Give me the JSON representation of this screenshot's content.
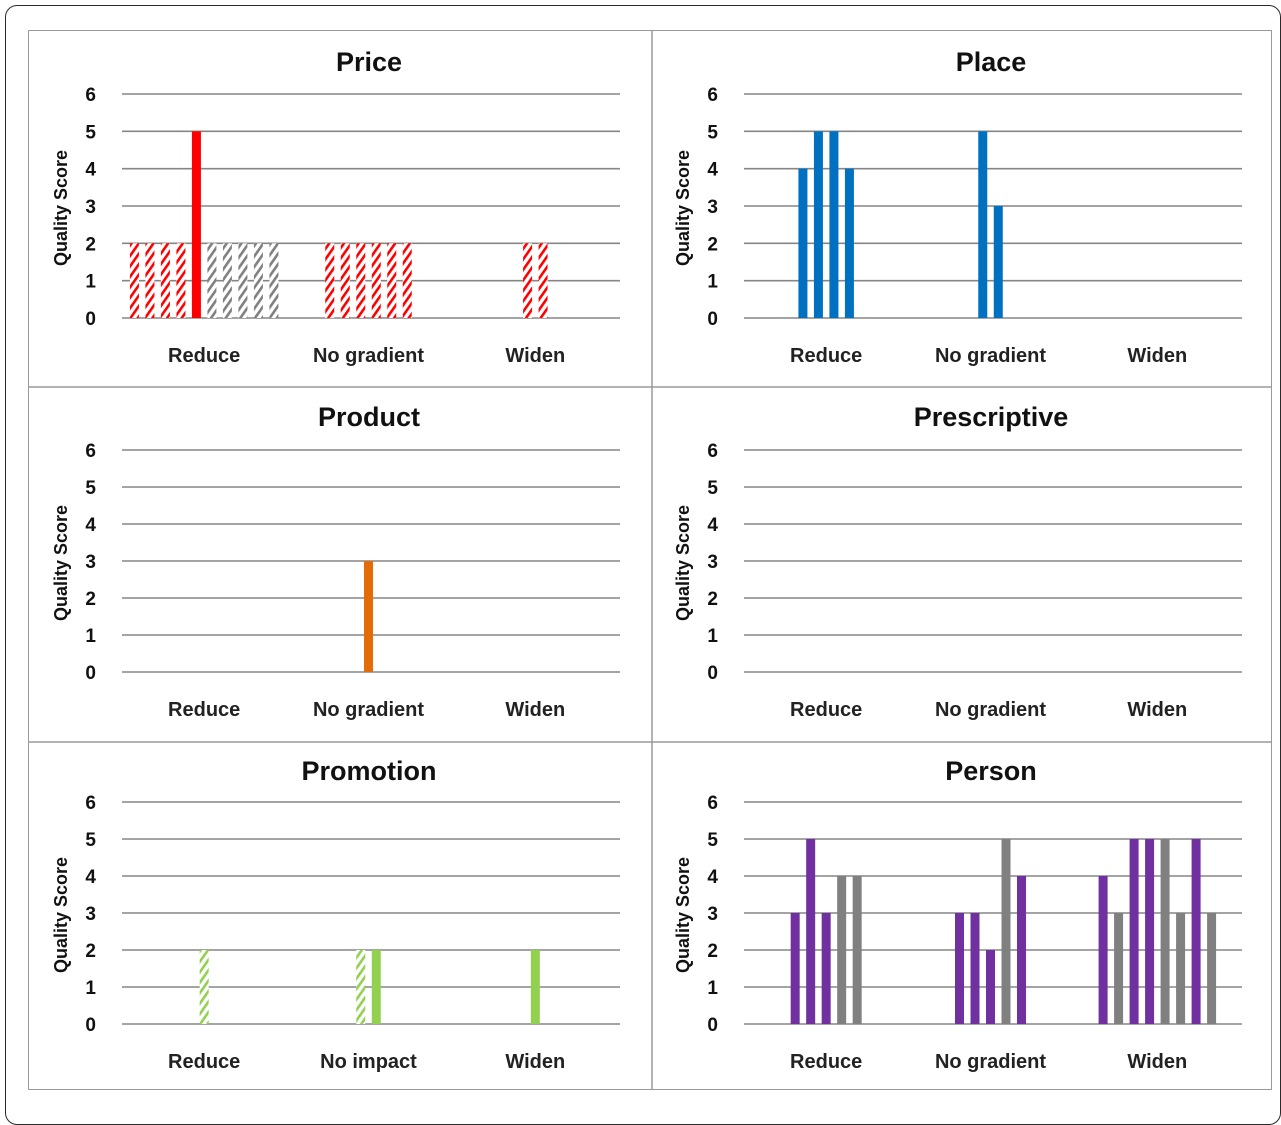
{
  "chart_data": [
    {
      "type": "bar",
      "title": "Price",
      "ylabel": "Quality Score",
      "xlabel": "",
      "ylim": [
        0,
        6
      ],
      "yticks": [
        0,
        1,
        2,
        3,
        4,
        5,
        6
      ],
      "categories": [
        "Reduce",
        "No gradient",
        "Widen"
      ],
      "grid": true,
      "bars": [
        {
          "category": "Reduce",
          "value": 2,
          "color": "#ff0000",
          "pattern": "hatched"
        },
        {
          "category": "Reduce",
          "value": 2,
          "color": "#ff0000",
          "pattern": "hatched"
        },
        {
          "category": "Reduce",
          "value": 2,
          "color": "#ff0000",
          "pattern": "hatched"
        },
        {
          "category": "Reduce",
          "value": 2,
          "color": "#ff0000",
          "pattern": "hatched"
        },
        {
          "category": "Reduce",
          "value": 5,
          "color": "#ff0000",
          "pattern": "solid"
        },
        {
          "category": "Reduce",
          "value": 2,
          "color": "#808080",
          "pattern": "hatched"
        },
        {
          "category": "Reduce",
          "value": 2,
          "color": "#808080",
          "pattern": "hatched"
        },
        {
          "category": "Reduce",
          "value": 2,
          "color": "#808080",
          "pattern": "hatched"
        },
        {
          "category": "Reduce",
          "value": 2,
          "color": "#808080",
          "pattern": "hatched"
        },
        {
          "category": "Reduce",
          "value": 2,
          "color": "#808080",
          "pattern": "hatched"
        },
        {
          "category": "No gradient",
          "value": 2,
          "color": "#ff0000",
          "pattern": "hatched"
        },
        {
          "category": "No gradient",
          "value": 2,
          "color": "#ff0000",
          "pattern": "hatched"
        },
        {
          "category": "No gradient",
          "value": 2,
          "color": "#ff0000",
          "pattern": "hatched"
        },
        {
          "category": "No gradient",
          "value": 2,
          "color": "#ff0000",
          "pattern": "hatched"
        },
        {
          "category": "No gradient",
          "value": 2,
          "color": "#ff0000",
          "pattern": "hatched"
        },
        {
          "category": "No gradient",
          "value": 2,
          "color": "#ff0000",
          "pattern": "hatched"
        },
        {
          "category": "Widen",
          "value": 2,
          "color": "#ff0000",
          "pattern": "hatched"
        },
        {
          "category": "Widen",
          "value": 2,
          "color": "#ff0000",
          "pattern": "hatched"
        }
      ]
    },
    {
      "type": "bar",
      "title": "Place",
      "ylabel": "Quality Score",
      "xlabel": "",
      "ylim": [
        0,
        6
      ],
      "yticks": [
        0,
        1,
        2,
        3,
        4,
        5,
        6
      ],
      "categories": [
        "Reduce",
        "No gradient",
        "Widen"
      ],
      "grid": true,
      "bars": [
        {
          "category": "Reduce",
          "value": 4,
          "color": "#0070c0",
          "pattern": "solid"
        },
        {
          "category": "Reduce",
          "value": 5,
          "color": "#0070c0",
          "pattern": "solid"
        },
        {
          "category": "Reduce",
          "value": 5,
          "color": "#0070c0",
          "pattern": "solid"
        },
        {
          "category": "Reduce",
          "value": 4,
          "color": "#0070c0",
          "pattern": "solid"
        },
        {
          "category": "No gradient",
          "value": 5,
          "color": "#0070c0",
          "pattern": "solid"
        },
        {
          "category": "No gradient",
          "value": 3,
          "color": "#0070c0",
          "pattern": "solid"
        }
      ]
    },
    {
      "type": "bar",
      "title": "Product",
      "ylabel": "Quality Score",
      "xlabel": "",
      "ylim": [
        0,
        6
      ],
      "yticks": [
        0,
        1,
        2,
        3,
        4,
        5,
        6
      ],
      "categories": [
        "Reduce",
        "No gradient",
        "Widen"
      ],
      "grid": true,
      "bars": [
        {
          "category": "No gradient",
          "value": 3,
          "color": "#e36c09",
          "pattern": "solid"
        }
      ]
    },
    {
      "type": "bar",
      "title": "Prescriptive",
      "ylabel": "Quality Score",
      "xlabel": "",
      "ylim": [
        0,
        6
      ],
      "yticks": [
        0,
        1,
        2,
        3,
        4,
        5,
        6
      ],
      "categories": [
        "Reduce",
        "No gradient",
        "Widen"
      ],
      "grid": true,
      "bars": []
    },
    {
      "type": "bar",
      "title": "Promotion",
      "ylabel": "Quality Score",
      "xlabel": "",
      "ylim": [
        0,
        6
      ],
      "yticks": [
        0,
        1,
        2,
        3,
        4,
        5,
        6
      ],
      "categories": [
        "Reduce",
        "No impact",
        "Widen"
      ],
      "grid": true,
      "bars": [
        {
          "category": "Reduce",
          "value": 2,
          "color": "#92d050",
          "pattern": "hatched"
        },
        {
          "category": "No impact",
          "value": 2,
          "color": "#92d050",
          "pattern": "hatched"
        },
        {
          "category": "No impact",
          "value": 2,
          "color": "#92d050",
          "pattern": "solid"
        },
        {
          "category": "Widen",
          "value": 2,
          "color": "#92d050",
          "pattern": "solid"
        }
      ]
    },
    {
      "type": "bar",
      "title": "Person",
      "ylabel": "Quality Score",
      "xlabel": "",
      "ylim": [
        0,
        6
      ],
      "yticks": [
        0,
        1,
        2,
        3,
        4,
        5,
        6
      ],
      "categories": [
        "Reduce",
        "No gradient",
        "Widen"
      ],
      "grid": true,
      "bars": [
        {
          "category": "Reduce",
          "value": 3,
          "color": "#7030a0",
          "pattern": "solid"
        },
        {
          "category": "Reduce",
          "value": 5,
          "color": "#7030a0",
          "pattern": "solid"
        },
        {
          "category": "Reduce",
          "value": 3,
          "color": "#7030a0",
          "pattern": "solid"
        },
        {
          "category": "Reduce",
          "value": 4,
          "color": "#808080",
          "pattern": "solid"
        },
        {
          "category": "Reduce",
          "value": 4,
          "color": "#808080",
          "pattern": "solid"
        },
        {
          "category": "No gradient",
          "value": 3,
          "color": "#7030a0",
          "pattern": "solid"
        },
        {
          "category": "No gradient",
          "value": 3,
          "color": "#7030a0",
          "pattern": "solid"
        },
        {
          "category": "No gradient",
          "value": 2,
          "color": "#7030a0",
          "pattern": "solid"
        },
        {
          "category": "No gradient",
          "value": 5,
          "color": "#808080",
          "pattern": "solid"
        },
        {
          "category": "No gradient",
          "value": 4,
          "color": "#7030a0",
          "pattern": "solid"
        },
        {
          "category": "Widen",
          "value": 4,
          "color": "#7030a0",
          "pattern": "solid"
        },
        {
          "category": "Widen",
          "value": 3,
          "color": "#808080",
          "pattern": "solid"
        },
        {
          "category": "Widen",
          "value": 5,
          "color": "#7030a0",
          "pattern": "solid"
        },
        {
          "category": "Widen",
          "value": 5,
          "color": "#7030a0",
          "pattern": "solid"
        },
        {
          "category": "Widen",
          "value": 5,
          "color": "#808080",
          "pattern": "solid"
        },
        {
          "category": "Widen",
          "value": 3,
          "color": "#808080",
          "pattern": "solid"
        },
        {
          "category": "Widen",
          "value": 5,
          "color": "#7030a0",
          "pattern": "solid"
        },
        {
          "category": "Widen",
          "value": 3,
          "color": "#808080",
          "pattern": "solid"
        }
      ]
    }
  ]
}
